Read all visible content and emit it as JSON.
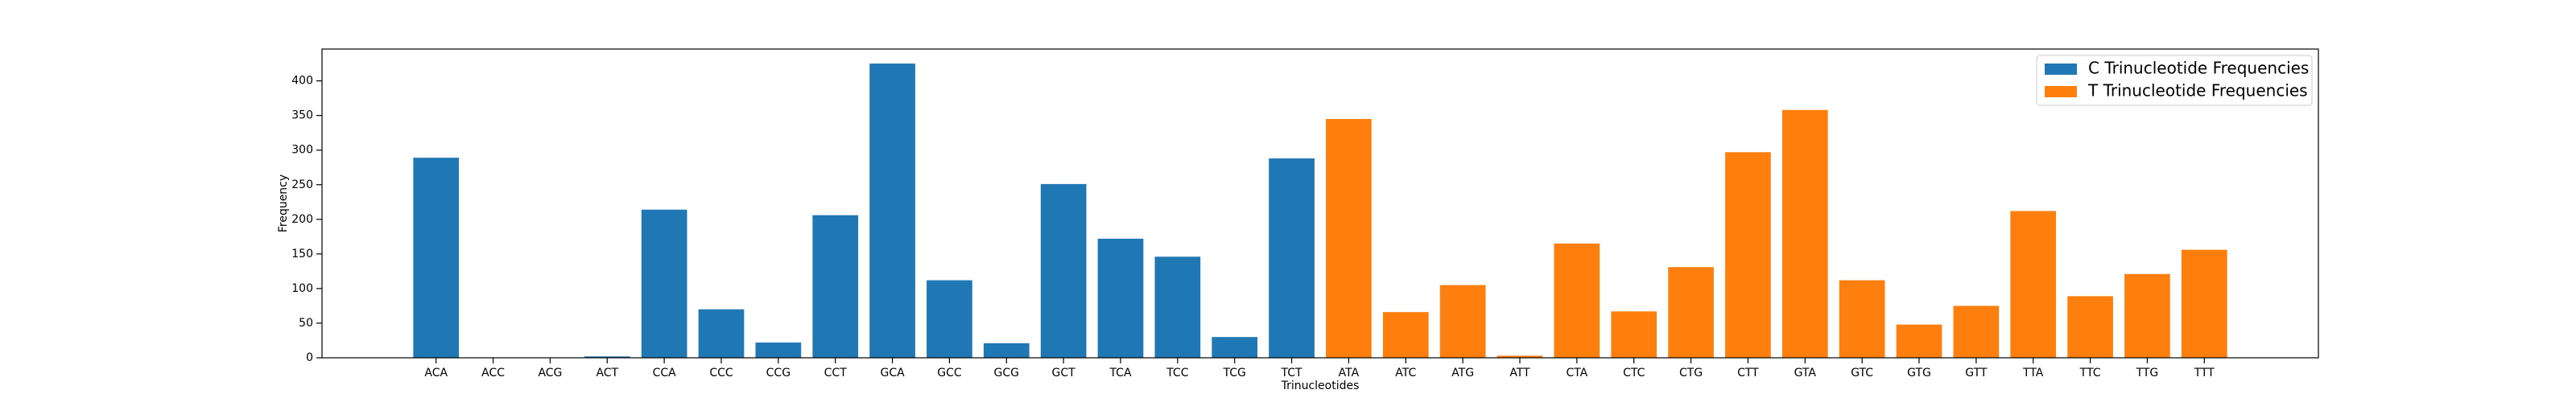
{
  "chart_data": {
    "type": "bar",
    "x_label": "Trinucleotides",
    "y_label": "Frequency",
    "categories": [
      "ACA",
      "ACC",
      "ACG",
      "ACT",
      "CCA",
      "CCC",
      "CCG",
      "CCT",
      "GCA",
      "GCC",
      "GCG",
      "GCT",
      "TCA",
      "TCC",
      "TCG",
      "TCT",
      "ATA",
      "ATC",
      "ATG",
      "ATT",
      "CTA",
      "CTC",
      "CTG",
      "CTT",
      "GTA",
      "GTC",
      "GTG",
      "GTT",
      "TTA",
      "TTC",
      "TTG",
      "TTT"
    ],
    "series": [
      {
        "name": "C Trinucleotide Frequencies",
        "color": "#1f77b4",
        "values": [
          289,
          0,
          0,
          2,
          214,
          70,
          22,
          206,
          425,
          112,
          21,
          251,
          172,
          146,
          30,
          288,
          null,
          null,
          null,
          null,
          null,
          null,
          null,
          null,
          null,
          null,
          null,
          null,
          null,
          null,
          null,
          null
        ]
      },
      {
        "name": "T Trinucleotide Frequencies",
        "color": "#ff7f0e",
        "values": [
          null,
          null,
          null,
          null,
          null,
          null,
          null,
          null,
          null,
          null,
          null,
          null,
          null,
          null,
          null,
          null,
          345,
          66,
          105,
          3,
          165,
          67,
          131,
          297,
          358,
          112,
          48,
          75,
          212,
          89,
          121,
          156
        ]
      }
    ],
    "ylim": [
      0,
      446
    ],
    "yticks": [
      0,
      50,
      100,
      150,
      200,
      250,
      300,
      350,
      400
    ],
    "grid": false,
    "legend": "upper right"
  }
}
